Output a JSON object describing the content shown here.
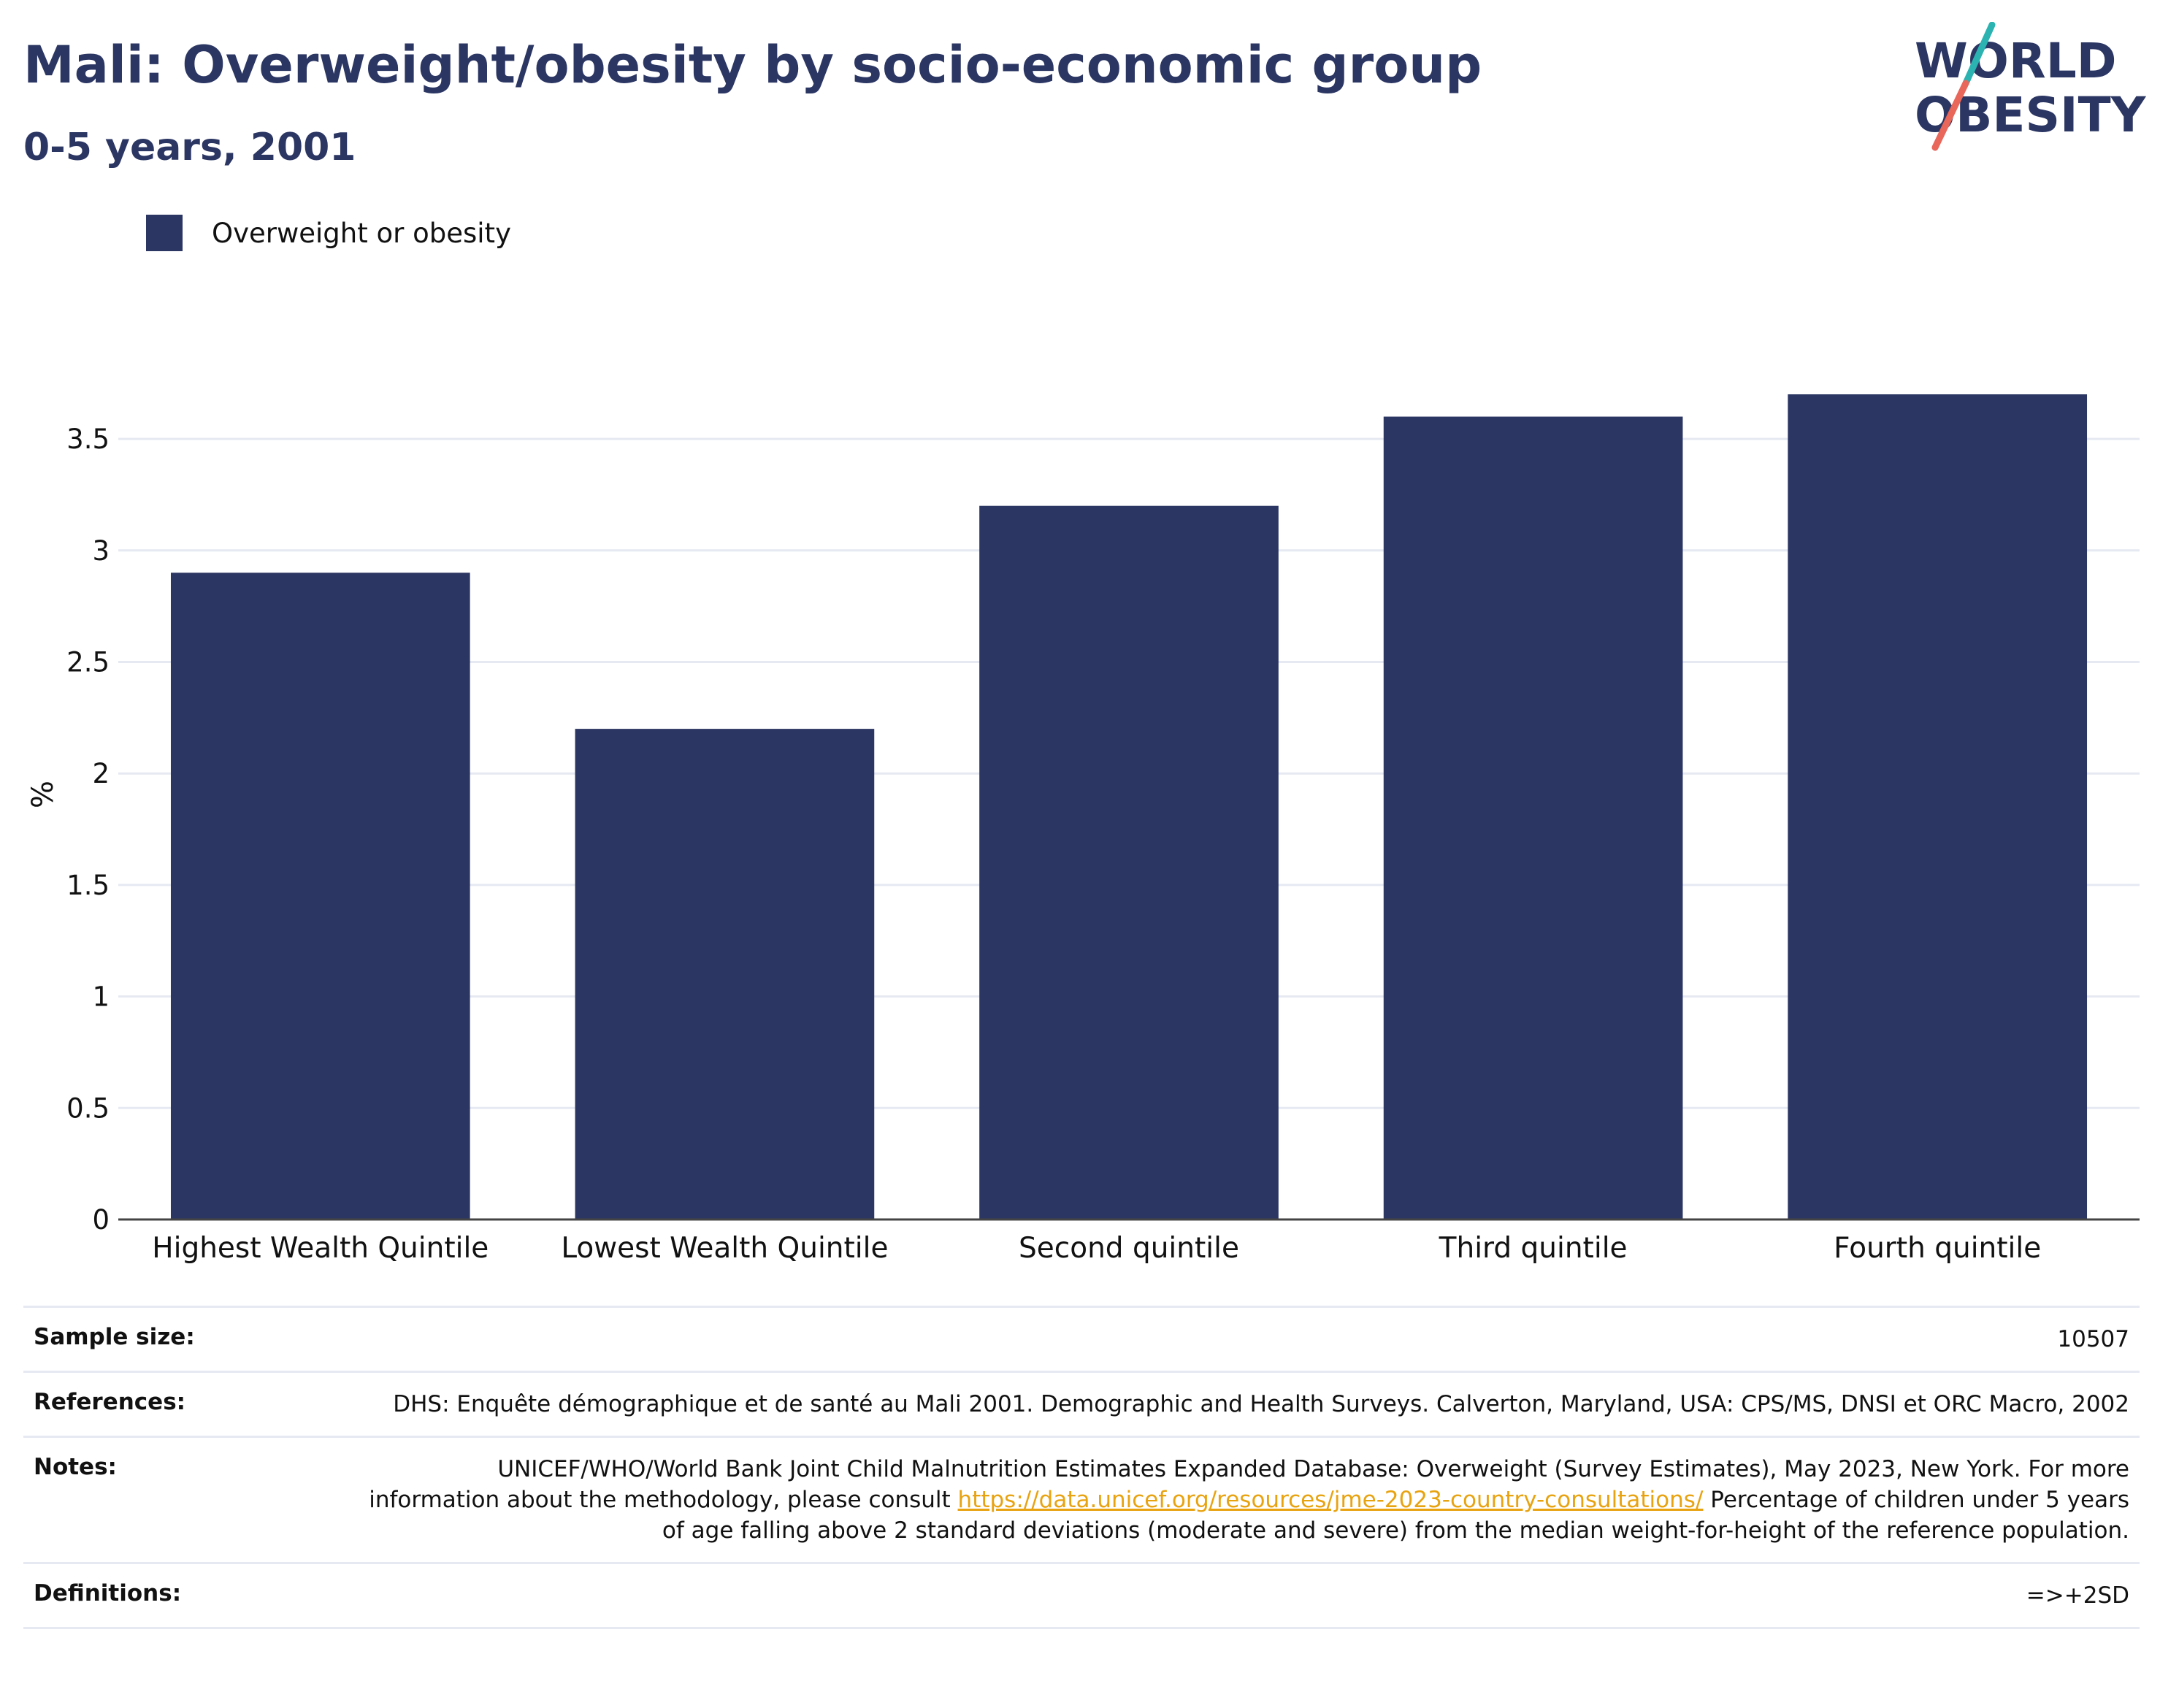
{
  "title": "Mali: Overweight/obesity by socio-economic group",
  "subtitle": "0-5 years, 2001",
  "logo": {
    "line1": "WORLD",
    "line2": "OBESITY",
    "text_color": "#2b3663",
    "slash_color_top": "#2bb3b1",
    "slash_color_bottom": "#e8665a"
  },
  "colors": {
    "bar": "#2b3663",
    "grid": "#e6e9f2",
    "axis": "#444444"
  },
  "chart_data": {
    "type": "bar",
    "categories": [
      "Highest Wealth Quintile",
      "Lowest Wealth Quintile",
      "Second quintile",
      "Third quintile",
      "Fourth quintile"
    ],
    "series": [
      {
        "name": "Overweight or obesity",
        "values": [
          2.9,
          2.2,
          3.2,
          3.6,
          3.7
        ],
        "color": "#2b3663"
      }
    ],
    "ylabel": "%",
    "xlabel": "",
    "ylim": [
      0,
      3.7
    ],
    "yticks": [
      0,
      0.5,
      1,
      1.5,
      2,
      2.5,
      3,
      3.5
    ],
    "ytick_labels": [
      "0",
      "0.5",
      "1",
      "1.5",
      "2",
      "2.5",
      "3",
      "3.5"
    ],
    "grid": true,
    "legend": "top-left"
  },
  "info": {
    "sample_size_label": "Sample size:",
    "sample_size": "10507",
    "references_label": "References:",
    "references": "DHS: Enquête démographique et de santé au Mali 2001. Demographic and Health Surveys. Calverton, Maryland, USA: CPS/MS, DNSI et ORC Macro, 2002",
    "notes_label": "Notes:",
    "notes_before_link": "UNICEF/WHO/World Bank Joint Child Malnutrition Estimates Expanded Database: Overweight (Survey Estimates), May 2023, New York. For more information about the methodology, please consult ",
    "notes_link": "https://data.unicef.org/resources/jme-2023-country-consultations/",
    "notes_after_link": " Percentage of children under 5 years of age falling above 2 standard deviations (moderate and severe) from the median weight-for-height of the reference population.",
    "definitions_label": "Definitions:",
    "definitions": "=>+2SD"
  }
}
